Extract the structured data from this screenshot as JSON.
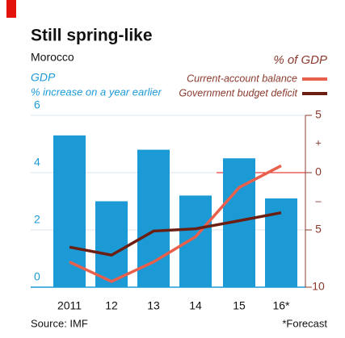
{
  "chart_data": {
    "type": "bar-line",
    "title": "Still spring-like",
    "subtitle": "Morocco",
    "y_label": "GDP",
    "y_sublabel": "% increase on a year earlier",
    "y2_label": "% of GDP",
    "categories": [
      "2011",
      "12",
      "13",
      "14",
      "15",
      "16*"
    ],
    "series": [
      {
        "name": "GDP",
        "color": "#1b9ad6",
        "type": "bar",
        "values": [
          5.3,
          3.0,
          4.8,
          3.2,
          4.5,
          3.1
        ]
      },
      {
        "name": "Current-account balance",
        "color": "#e8604c",
        "type": "line",
        "axis": "y2",
        "values": [
          -7.8,
          -9.5,
          -7.8,
          -5.6,
          -1.3,
          0.6
        ]
      },
      {
        "name": "Government budget deficit",
        "color": "#6b1f12",
        "type": "line",
        "axis": "y2",
        "values": [
          -6.5,
          -7.2,
          -5.1,
          -4.9,
          -4.2,
          -3.5
        ]
      }
    ],
    "ylim": [
      0,
      6
    ],
    "yticks": [
      0,
      2,
      4,
      6
    ],
    "y2lim": [
      -10,
      5
    ],
    "y2ticks": [
      {
        "value": -10,
        "label": "10"
      },
      {
        "value": -5,
        "label": "5"
      },
      0,
      5
    ],
    "y2_signs": [
      "+",
      "–"
    ],
    "source": "Source: IMF",
    "note": "*Forecast",
    "grid": true
  }
}
